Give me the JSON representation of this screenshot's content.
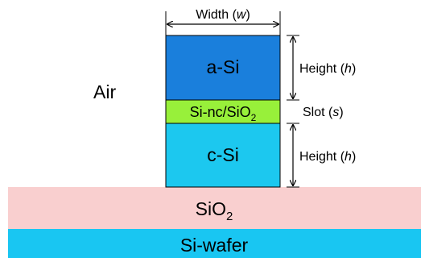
{
  "diagram": {
    "ambient_label": "Air",
    "width_label": {
      "text": "Width (",
      "var": "w",
      "close": ")"
    },
    "layers": {
      "top_core": "a-Si",
      "slot": {
        "base": "Si-nc/SiO",
        "sub": "2"
      },
      "bottom_core": "c-Si",
      "cladding": {
        "base": "SiO",
        "sub": "2"
      },
      "substrate": "Si-wafer"
    },
    "dimensions": {
      "height_top": {
        "text": "Height (",
        "var": "h",
        "close": ")"
      },
      "slot": {
        "text": "Slot (",
        "var": "s",
        "close": ")"
      },
      "height_bottom": {
        "text": "Height (",
        "var": "h",
        "close": ")"
      }
    },
    "colors": {
      "top_core": "#1a7fdc",
      "slot": "#98f03a",
      "bottom_core": "#1cc8ef",
      "cladding": "#f9cfcf",
      "substrate": "#19c6f2",
      "outline": "#000000"
    }
  }
}
